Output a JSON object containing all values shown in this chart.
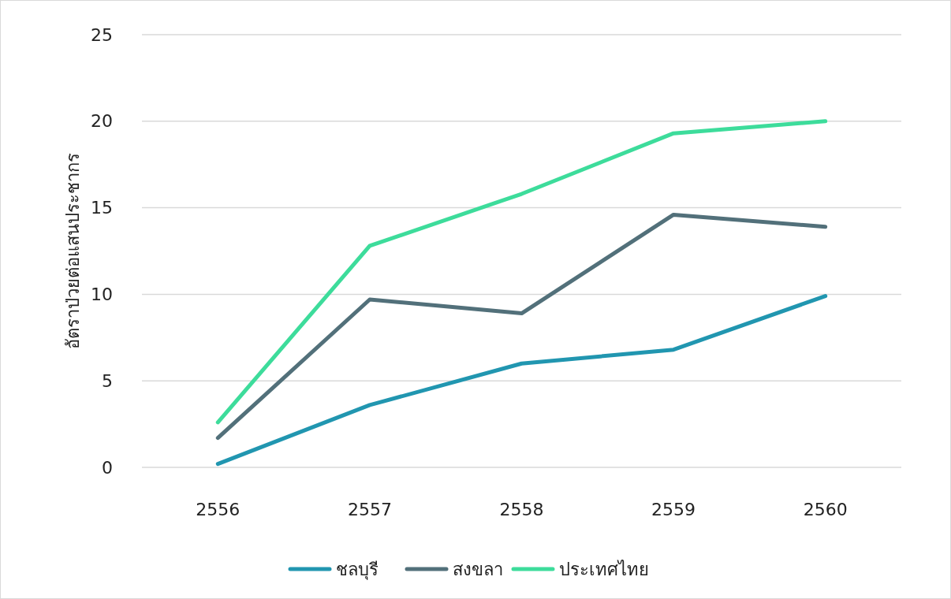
{
  "chart_data": {
    "type": "line",
    "ylabel": "อัตราป่วยต่อแสนประชากร",
    "categories": [
      "2556",
      "2557",
      "2558",
      "2559",
      "2560"
    ],
    "series": [
      {
        "name": "ชลบุรี",
        "color": "#2196b0",
        "values": [
          0.2,
          3.6,
          6.0,
          6.8,
          9.9
        ]
      },
      {
        "name": "สงขลา",
        "color": "#52707a",
        "values": [
          1.7,
          9.7,
          8.9,
          14.6,
          13.9
        ]
      },
      {
        "name": "ประเทศไทย",
        "color": "#3ddc9b",
        "values": [
          2.6,
          12.8,
          15.8,
          19.3,
          20.0
        ]
      }
    ],
    "ylim": [
      0,
      25
    ],
    "yticks": [
      0,
      5,
      10,
      15,
      20,
      25
    ],
    "grid": "y",
    "legend": "bottom",
    "marker": "none",
    "line_style": "solid"
  }
}
